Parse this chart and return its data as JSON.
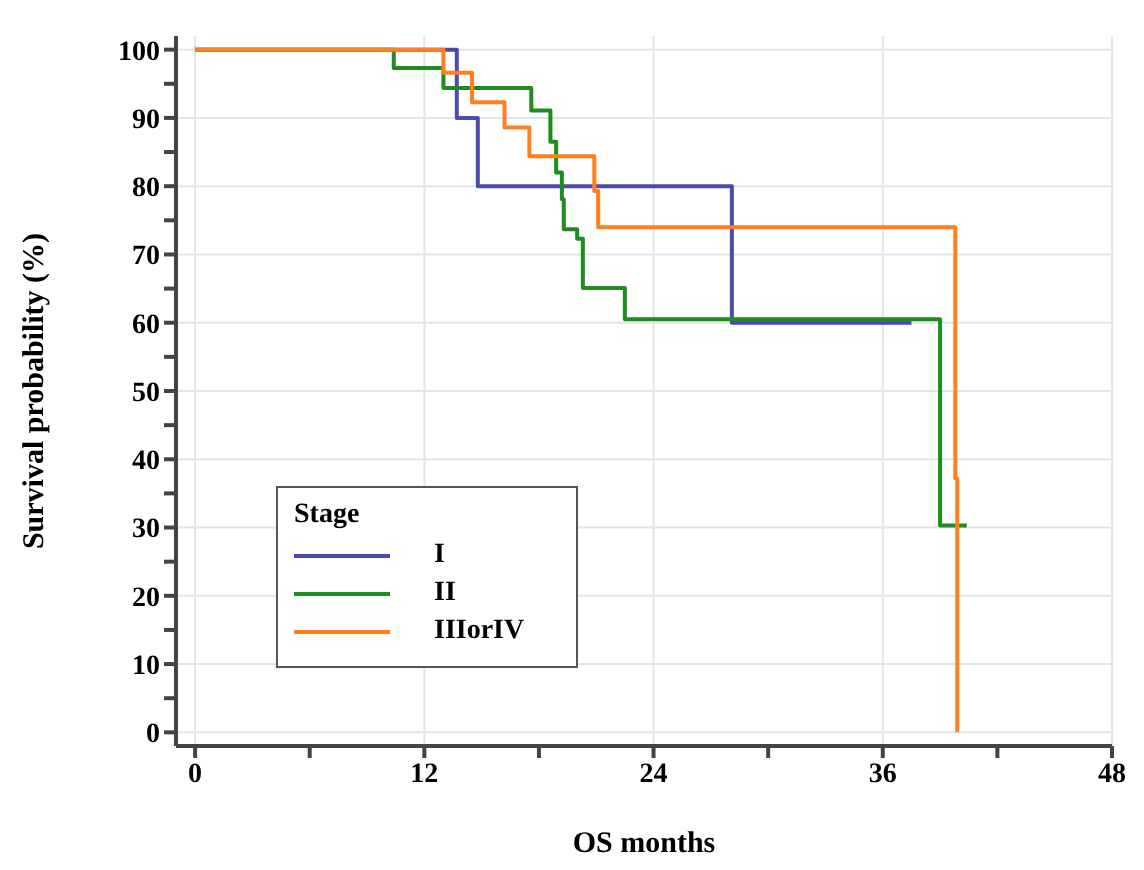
{
  "chart_data": {
    "type": "step",
    "xlabel": "OS months",
    "ylabel": "Survival probability (%)",
    "legend_title": "Stage",
    "legend": "bottom left",
    "grid": true,
    "marker": "none",
    "line_style": "solid",
    "xlim": [
      -1,
      48
    ],
    "xticks": [
      0,
      {
        "value": 6,
        "label": null
      },
      12,
      {
        "value": 18,
        "label": null
      },
      24,
      {
        "value": 30,
        "label": null
      },
      36,
      {
        "value": 42,
        "label": null
      },
      48
    ],
    "ylim": [
      -2,
      102
    ],
    "yticks": [
      0,
      {
        "value": 5,
        "label": null
      },
      10,
      {
        "value": 15,
        "label": null
      },
      20,
      {
        "value": 25,
        "label": null
      },
      30,
      {
        "value": 35,
        "label": null
      },
      40,
      {
        "value": 45,
        "label": null
      },
      50,
      {
        "value": 55,
        "label": null
      },
      60,
      {
        "value": 65,
        "label": null
      },
      70,
      {
        "value": 75,
        "label": null
      },
      80,
      {
        "value": 85,
        "label": null
      },
      90,
      {
        "value": 95,
        "label": null
      },
      100
    ],
    "series": [
      {
        "name": "I",
        "color": "#4b4bab",
        "x": [
          0,
          13.7,
          14.8,
          28.1,
          37.5
        ],
        "values": [
          100,
          90,
          80,
          60,
          60
        ]
      },
      {
        "name": "II",
        "color": "#1e8c1e",
        "x": [
          0,
          10.4,
          13.0,
          17.6,
          18.6,
          18.9,
          19.2,
          19.3,
          20.0,
          20.3,
          22.5,
          39.0,
          40.4
        ],
        "values": [
          100,
          97.3,
          94.4,
          91.1,
          86.5,
          82,
          78.1,
          73.7,
          72.3,
          65.1,
          60.5,
          30.3,
          30.3
        ]
      },
      {
        "name": "IIIorIV",
        "color": "#ff7f1e",
        "x": [
          0,
          13.0,
          14.5,
          16.2,
          17.5,
          20.9,
          21.1,
          39.8,
          39.9
        ],
        "values": [
          100,
          96.6,
          92.3,
          88.6,
          84.4,
          79.3,
          74.0,
          37.2,
          0
        ]
      }
    ]
  }
}
